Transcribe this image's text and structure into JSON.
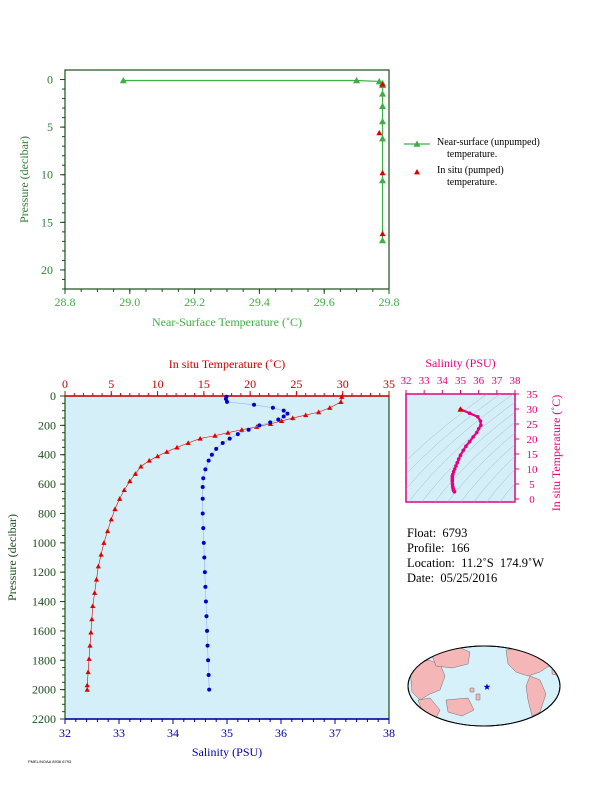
{
  "chart_data": [
    {
      "type": "scatter",
      "xlabel": "Near-Surface Temperature (˚C)",
      "ylabel": "Pressure (decibar)",
      "xlim": [
        28.8,
        29.8
      ],
      "ylim": [
        22,
        -1
      ],
      "x_ticks": [
        "28.8",
        "29.0",
        "29.2",
        "29.4",
        "29.6",
        "29.8"
      ],
      "y_ticks": [
        "0",
        "5",
        "10",
        "15",
        "20"
      ],
      "series": [
        {
          "name": "Near-surface (unpumped) temperature.",
          "color": "#3cb043",
          "marker": "triangle",
          "line": true,
          "points": [
            [
              28.98,
              0.1
            ],
            [
              29.7,
              0.1
            ],
            [
              29.77,
              0.2
            ],
            [
              29.78,
              0.4
            ],
            [
              29.78,
              0.6
            ],
            [
              29.78,
              1.5
            ],
            [
              29.78,
              2.8
            ],
            [
              29.78,
              4.4
            ],
            [
              29.78,
              6.2
            ],
            [
              29.78,
              10.6
            ],
            [
              29.78,
              16.9
            ]
          ]
        },
        {
          "name": "In situ (pumped) temperature.",
          "color": "#dd0000",
          "marker": "triangle",
          "line": false,
          "points": [
            [
              29.78,
              0.5
            ],
            [
              29.77,
              5.6
            ],
            [
              29.78,
              9.8
            ],
            [
              29.78,
              16.2
            ]
          ]
        }
      ]
    },
    {
      "type": "line",
      "xlabel_top": "In situ Temperature (˚C)",
      "xlabel_bottom": "Salinity (PSU)",
      "ylabel": "Pressure (decibar)",
      "temp_lim": [
        0,
        35
      ],
      "sal_lim": [
        32,
        38
      ],
      "ylim": [
        2200,
        0
      ],
      "temp_ticks": [
        "0",
        "5",
        "10",
        "15",
        "20",
        "25",
        "30",
        "35"
      ],
      "sal_ticks": [
        "32",
        "33",
        "34",
        "35",
        "36",
        "37",
        "38"
      ],
      "y_ticks": [
        "0",
        "200",
        "400",
        "600",
        "800",
        "1000",
        "1200",
        "1400",
        "1600",
        "1800",
        "2000",
        "2200"
      ],
      "temperature": {
        "color": "#dd0000",
        "marker": "triangle",
        "points": [
          [
            29.9,
            5
          ],
          [
            29.8,
            40
          ],
          [
            28.6,
            80
          ],
          [
            27.4,
            110
          ],
          [
            26.0,
            130
          ],
          [
            24.6,
            150
          ],
          [
            23.4,
            170
          ],
          [
            22.2,
            190
          ],
          [
            20.7,
            210
          ],
          [
            19.1,
            230
          ],
          [
            17.6,
            250
          ],
          [
            16.2,
            270
          ],
          [
            14.6,
            290
          ],
          [
            13.3,
            320
          ],
          [
            12.1,
            350
          ],
          [
            11.0,
            380
          ],
          [
            10.0,
            410
          ],
          [
            9.1,
            440
          ],
          [
            8.2,
            480
          ],
          [
            7.6,
            530
          ],
          [
            7.0,
            580
          ],
          [
            6.4,
            640
          ],
          [
            5.9,
            700
          ],
          [
            5.4,
            770
          ],
          [
            5.0,
            840
          ],
          [
            4.6,
            920
          ],
          [
            4.2,
            1000
          ],
          [
            3.9,
            1080
          ],
          [
            3.6,
            1160
          ],
          [
            3.4,
            1250
          ],
          [
            3.2,
            1340
          ],
          [
            3.0,
            1430
          ],
          [
            2.9,
            1520
          ],
          [
            2.8,
            1610
          ],
          [
            2.7,
            1700
          ],
          [
            2.6,
            1790
          ],
          [
            2.5,
            1880
          ],
          [
            2.4,
            1970
          ],
          [
            2.4,
            2000
          ]
        ]
      },
      "salinity": {
        "color": "#0000cc",
        "marker": "dot",
        "points": [
          [
            34.99,
            5
          ],
          [
            34.98,
            20
          ],
          [
            35.0,
            40
          ],
          [
            35.5,
            60
          ],
          [
            35.85,
            80
          ],
          [
            36.05,
            100
          ],
          [
            36.12,
            120
          ],
          [
            36.05,
            140
          ],
          [
            35.95,
            160
          ],
          [
            35.8,
            180
          ],
          [
            35.6,
            200
          ],
          [
            35.4,
            230
          ],
          [
            35.2,
            260
          ],
          [
            35.05,
            290
          ],
          [
            34.92,
            320
          ],
          [
            34.8,
            360
          ],
          [
            34.72,
            400
          ],
          [
            34.66,
            440
          ],
          [
            34.6,
            500
          ],
          [
            34.56,
            560
          ],
          [
            34.55,
            620
          ],
          [
            34.55,
            700
          ],
          [
            34.55,
            800
          ],
          [
            34.56,
            900
          ],
          [
            34.57,
            1000
          ],
          [
            34.58,
            1100
          ],
          [
            34.59,
            1200
          ],
          [
            34.6,
            1300
          ],
          [
            34.61,
            1400
          ],
          [
            34.62,
            1500
          ],
          [
            34.63,
            1600
          ],
          [
            34.64,
            1700
          ],
          [
            34.65,
            1800
          ],
          [
            34.66,
            1900
          ],
          [
            34.67,
            2000
          ]
        ]
      }
    },
    {
      "type": "scatter",
      "title": "Salinity (PSU)",
      "ylabel": "In situ Temperature (˚C)",
      "xlim": [
        32,
        38
      ],
      "ylim": [
        -1,
        35
      ],
      "x_ticks": [
        "32",
        "33",
        "34",
        "35",
        "36",
        "37",
        "38"
      ],
      "y_ticks": [
        "0",
        "5",
        "10",
        "15",
        "20",
        "25",
        "30",
        "35"
      ],
      "color": "#e6007e",
      "points": [
        [
          35.0,
          29.9
        ],
        [
          35.5,
          28.6
        ],
        [
          35.95,
          27.4
        ],
        [
          36.1,
          26.0
        ],
        [
          36.12,
          24.6
        ],
        [
          36.0,
          23.4
        ],
        [
          35.9,
          22.2
        ],
        [
          35.7,
          20.7
        ],
        [
          35.5,
          19.1
        ],
        [
          35.3,
          17.6
        ],
        [
          35.15,
          16.2
        ],
        [
          35.0,
          14.6
        ],
        [
          34.9,
          13.3
        ],
        [
          34.82,
          12.1
        ],
        [
          34.75,
          11.0
        ],
        [
          34.68,
          10.0
        ],
        [
          34.62,
          9.1
        ],
        [
          34.58,
          8.2
        ],
        [
          34.55,
          7.6
        ],
        [
          34.55,
          7.0
        ],
        [
          34.55,
          6.4
        ],
        [
          34.55,
          5.9
        ],
        [
          34.56,
          5.0
        ],
        [
          34.57,
          4.2
        ],
        [
          34.59,
          3.6
        ],
        [
          34.6,
          3.2
        ],
        [
          34.62,
          2.9
        ],
        [
          34.64,
          2.7
        ],
        [
          34.66,
          2.5
        ],
        [
          34.67,
          2.4
        ]
      ]
    }
  ],
  "legend": {
    "item1_line1": "Near-surface (unpumped)",
    "item1_line2": "temperature.",
    "item2_line1": "In situ (pumped)",
    "item2_line2": "temperature."
  },
  "info": {
    "float": "Float:  6793",
    "profile": "Profile:  166",
    "location": "Location:  11.2˚S  174.9˚W",
    "date": "Date:  05/25/2016"
  },
  "map": {
    "marker_color": "#0000cc",
    "land_color": "#f4b6b6",
    "ocean_color": "#d6f1f9"
  },
  "footer_tiny": "PMEL/NOAA 8936 6793"
}
